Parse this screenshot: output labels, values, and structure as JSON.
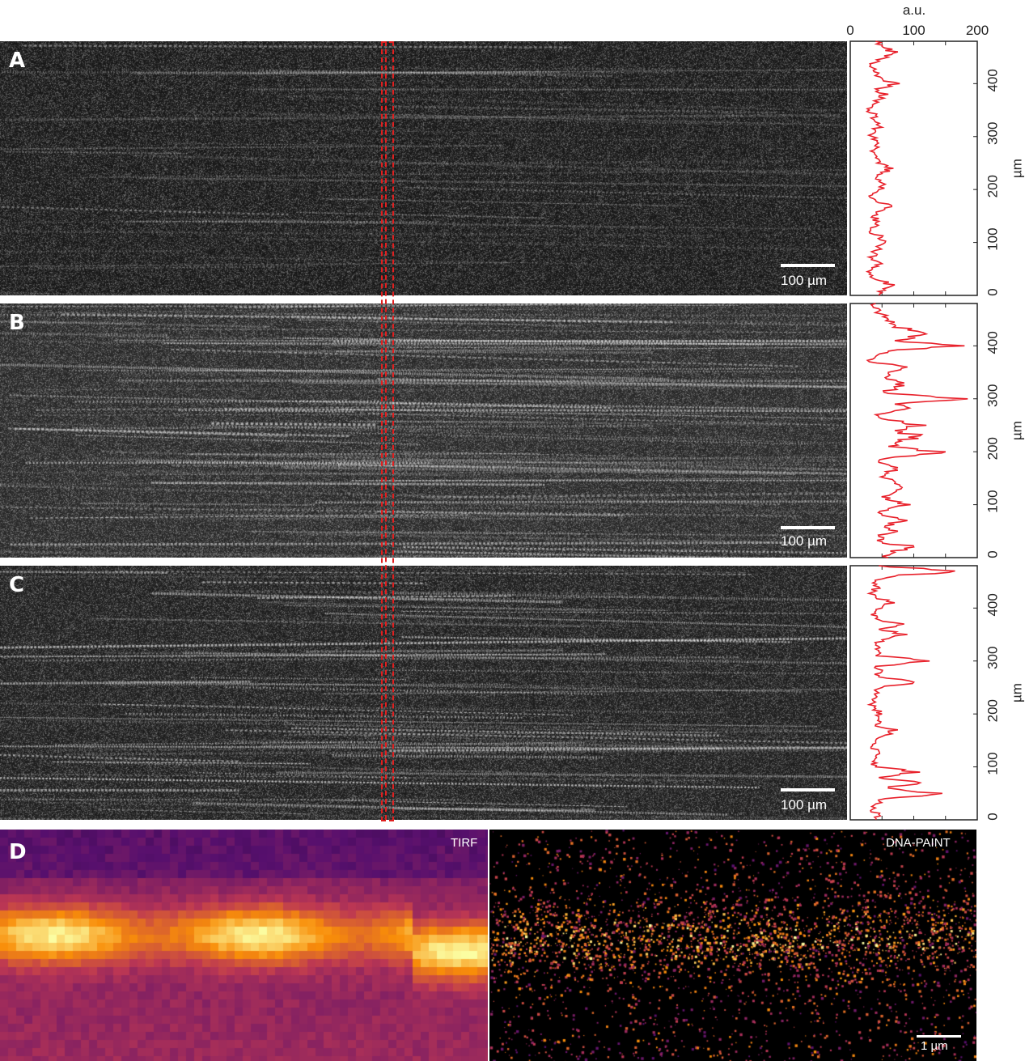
{
  "panels": [
    {
      "label": "A",
      "scale_bar": "100 µm"
    },
    {
      "label": "B",
      "scale_bar": "100 µm"
    },
    {
      "label": "C",
      "scale_bar": "100 µm"
    }
  ],
  "panel_d": {
    "label": "D",
    "left_title": "TIRF",
    "right_title": "DNA-PAINT",
    "scale_bar": "1 µm"
  },
  "chart_data": [
    {
      "type": "line",
      "panel": "A",
      "xlabel": "a.u.",
      "ylabel": "µm",
      "xlim": [
        0,
        200
      ],
      "ylim": [
        0,
        480
      ],
      "xticks": [
        "0",
        "100",
        "200"
      ],
      "yticks": [
        "0",
        "100",
        "200",
        "300",
        "400"
      ],
      "orientation": "vertical-profile",
      "color": "#e8202a",
      "y": [
        0,
        10,
        20,
        30,
        40,
        50,
        60,
        70,
        80,
        90,
        100,
        110,
        120,
        130,
        140,
        150,
        160,
        170,
        180,
        190,
        200,
        210,
        220,
        230,
        240,
        250,
        260,
        270,
        280,
        290,
        300,
        310,
        320,
        330,
        340,
        350,
        360,
        370,
        380,
        390,
        400,
        410,
        420,
        430,
        440,
        450,
        460,
        470,
        480
      ],
      "x": [
        45,
        55,
        70,
        40,
        30,
        35,
        50,
        35,
        38,
        45,
        55,
        50,
        30,
        40,
        45,
        35,
        50,
        65,
        40,
        35,
        45,
        55,
        40,
        50,
        68,
        42,
        40,
        38,
        45,
        42,
        35,
        40,
        45,
        38,
        40,
        30,
        35,
        45,
        60,
        40,
        78,
        50,
        45,
        35,
        40,
        60,
        75,
        50,
        40
      ]
    },
    {
      "type": "line",
      "panel": "B",
      "xlabel": "",
      "ylabel": "µm",
      "xlim": [
        0,
        200
      ],
      "ylim": [
        0,
        480
      ],
      "xticks": [],
      "yticks": [
        "0",
        "100",
        "200",
        "300",
        "400"
      ],
      "orientation": "vertical-profile",
      "color": "#e8202a",
      "y": [
        0,
        10,
        20,
        30,
        40,
        50,
        60,
        70,
        80,
        90,
        100,
        110,
        120,
        130,
        140,
        150,
        160,
        170,
        180,
        190,
        200,
        210,
        220,
        230,
        240,
        250,
        260,
        270,
        280,
        290,
        300,
        310,
        320,
        330,
        340,
        350,
        360,
        370,
        380,
        390,
        400,
        410,
        420,
        430,
        440,
        450,
        460,
        470,
        480
      ],
      "x": [
        60,
        70,
        100,
        50,
        45,
        75,
        55,
        90,
        50,
        60,
        95,
        55,
        65,
        80,
        70,
        55,
        60,
        75,
        45,
        70,
        150,
        60,
        80,
        110,
        70,
        120,
        60,
        40,
        85,
        70,
        185,
        60,
        70,
        85,
        55,
        60,
        90,
        30,
        40,
        60,
        180,
        70,
        110,
        90,
        70,
        60,
        50,
        45,
        40
      ]
    },
    {
      "type": "line",
      "panel": "C",
      "xlabel": "",
      "ylabel": "µm",
      "xlim": [
        0,
        200
      ],
      "ylim": [
        0,
        480
      ],
      "xticks": [],
      "yticks": [
        "0",
        "100",
        "200",
        "300",
        "400"
      ],
      "orientation": "vertical-profile",
      "color": "#e8202a",
      "y": [
        0,
        10,
        20,
        30,
        40,
        50,
        60,
        70,
        80,
        90,
        100,
        110,
        120,
        130,
        140,
        150,
        160,
        170,
        180,
        190,
        200,
        210,
        220,
        230,
        240,
        250,
        260,
        270,
        280,
        290,
        300,
        310,
        320,
        330,
        340,
        350,
        360,
        370,
        380,
        390,
        400,
        410,
        420,
        430,
        440,
        450,
        460,
        470,
        480
      ],
      "x": [
        40,
        45,
        35,
        40,
        55,
        145,
        60,
        110,
        45,
        110,
        40,
        35,
        40,
        45,
        35,
        40,
        55,
        75,
        40,
        45,
        50,
        40,
        35,
        40,
        45,
        50,
        100,
        45,
        50,
        40,
        125,
        40,
        45,
        40,
        50,
        90,
        45,
        85,
        40,
        40,
        50,
        70,
        40,
        35,
        45,
        40,
        70,
        165,
        45
      ]
    }
  ]
}
